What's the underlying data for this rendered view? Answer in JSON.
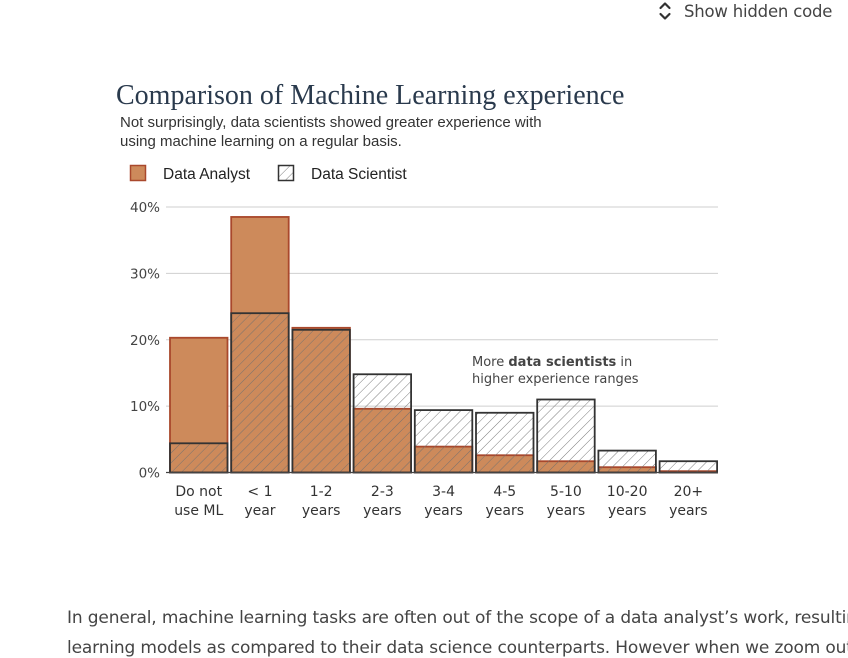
{
  "toolbar": {
    "show_hidden_code_label": "Show hidden code",
    "toggle_icon": "chevron-up-down-icon"
  },
  "chart": {
    "title": "Comparison of Machine Learning experience",
    "subtitle": "Not surprisingly, data scientists showed greater experience with using machine learning on a regular basis.",
    "annotation": {
      "prefix": "More ",
      "bold": "data scientists",
      "suffix": " in",
      "line2": "higher experience ranges"
    }
  },
  "chart_data": {
    "type": "bar",
    "title": "Comparison of Machine Learning experience",
    "subtitle": "Not surprisingly, data scientists showed greater experience with using machine learning on a regular basis.",
    "categories": [
      [
        "Do not",
        "use ML"
      ],
      [
        "< 1",
        "year"
      ],
      [
        "1-2",
        "years"
      ],
      [
        "2-3",
        "years"
      ],
      [
        "3-4",
        "years"
      ],
      [
        "4-5",
        "years"
      ],
      [
        "5-10",
        "years"
      ],
      [
        "10-20",
        "years"
      ],
      [
        "20+",
        "years"
      ]
    ],
    "series": [
      {
        "name": "Data Analyst",
        "style": "filled",
        "fill": "#cd8a5b",
        "stroke": "#a9482c",
        "values": [
          20.3,
          38.5,
          21.8,
          9.6,
          3.9,
          2.6,
          1.7,
          0.8,
          0.2
        ]
      },
      {
        "name": "Data Scientist",
        "style": "hatched",
        "stroke": "#333333",
        "values": [
          4.4,
          24.0,
          21.5,
          14.8,
          9.4,
          9.0,
          11.0,
          3.3,
          1.7
        ]
      }
    ],
    "ylim": [
      0,
      40
    ],
    "yticks": [
      "0%",
      "10%",
      "20%",
      "30%",
      "40%"
    ],
    "xlabel": "",
    "ylabel": "",
    "grid": true,
    "legend": "top-left"
  },
  "article": {
    "line1": "In general, machine learning tasks are often out of the scope of a data analyst’s work, resulting",
    "line2": "learning models as compared to their data science counterparts. However when we zoom out a"
  }
}
